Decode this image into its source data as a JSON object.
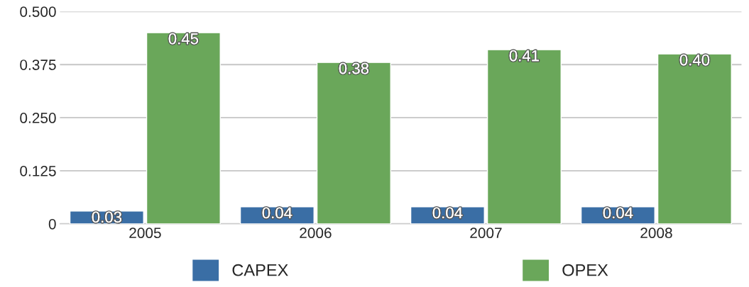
{
  "chart_data": {
    "type": "bar",
    "categories": [
      "2005",
      "2006",
      "2007",
      "2008"
    ],
    "series": [
      {
        "name": "CAPEX",
        "color": "#3a6ea5",
        "values": [
          0.03,
          0.04,
          0.04,
          0.04
        ],
        "value_labels": [
          "0.03",
          "0.04",
          "0.04",
          "0.04"
        ]
      },
      {
        "name": "OPEX",
        "color": "#6aa75a",
        "values": [
          0.45,
          0.38,
          0.41,
          0.4
        ],
        "value_labels": [
          "0.45",
          "0.38",
          "0.41",
          "0.40"
        ]
      }
    ],
    "ylim": [
      0,
      0.5
    ],
    "yticks": [
      0,
      {
        "value": 0.125,
        "label": "0.125"
      },
      {
        "value": 0.25,
        "label": "0.250"
      },
      {
        "value": 0.375,
        "label": "0.375"
      },
      {
        "value": 0.5,
        "label": "0.500"
      }
    ],
    "grid": "y",
    "legend": "bottom"
  }
}
